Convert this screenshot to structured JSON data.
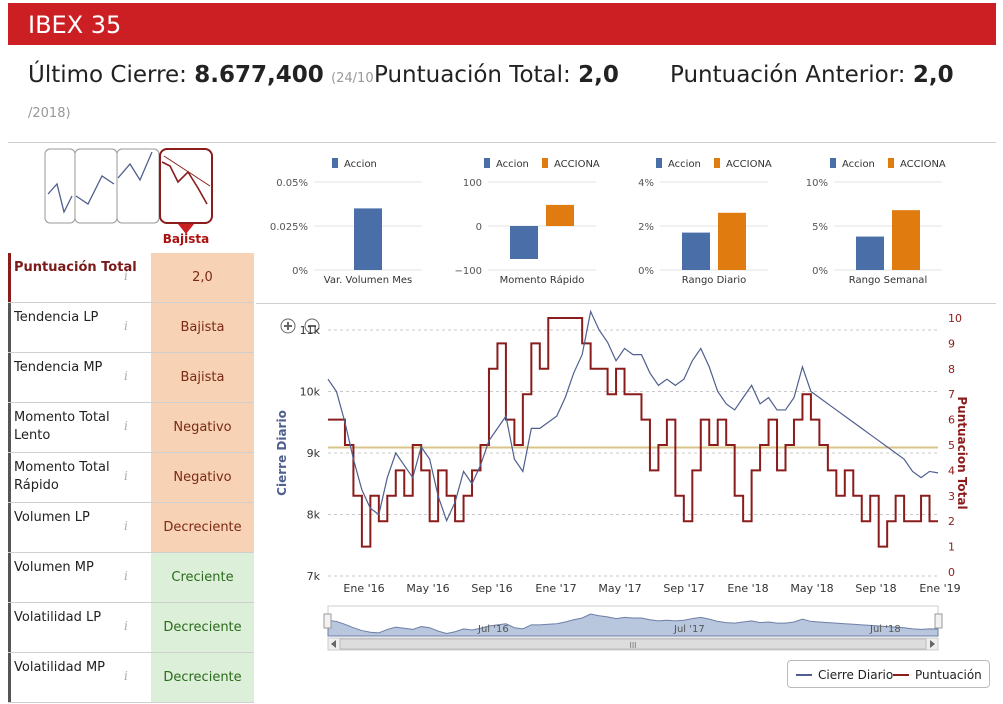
{
  "header": {
    "title": "IBEX 35"
  },
  "summary": {
    "close_label": "Último Cierre:",
    "close_value": "8.677,400",
    "close_date_a": "(24/10",
    "close_date_b": "/2018)",
    "score_label": "Puntuación Total:",
    "score_value": "2,0",
    "prev_label": "Puntuación Anterior:",
    "prev_value": "2,0"
  },
  "trend": {
    "label": "Bajista"
  },
  "indicators": [
    {
      "label": "Puntuación Total",
      "value": "2,0",
      "status": "bad"
    },
    {
      "label": "Tendencia LP",
      "value": "Bajista",
      "status": "bad"
    },
    {
      "label": "Tendencia MP",
      "value": "Bajista",
      "status": "bad"
    },
    {
      "label": "Momento Total Lento",
      "value": "Negativo",
      "status": "bad"
    },
    {
      "label": "Momento Total Rápido",
      "value": "Negativo",
      "status": "bad"
    },
    {
      "label": "Volumen LP",
      "value": "Decreciente",
      "status": "bad"
    },
    {
      "label": "Volumen MP",
      "value": "Creciente",
      "status": "good"
    },
    {
      "label": "Volatilidad LP",
      "value": "Decreciente",
      "status": "good"
    },
    {
      "label": "Volatilidad MP",
      "value": "Decreciente",
      "status": "good"
    }
  ],
  "info_icon": "i",
  "colors": {
    "accion": "#4a6fa8",
    "acciona": "#e07b10",
    "brand": "#cc1f23",
    "close_line": "#4f5f8f",
    "score_line": "#8b1c1c",
    "threshold": "#d8c48a"
  },
  "chart_data": [
    {
      "type": "bar",
      "title": "",
      "xlabel": "Var. Volumen Mes",
      "series": [
        {
          "name": "Accion",
          "values": [
            0.035
          ]
        }
      ],
      "yticks": [
        "0.05%",
        "0.025%",
        "0%"
      ],
      "ylim": [
        0,
        0.05
      ]
    },
    {
      "type": "bar",
      "title": "",
      "xlabel": "Momento Rápido",
      "series": [
        {
          "name": "Accion",
          "values": [
            -75
          ]
        },
        {
          "name": "ACCIONA",
          "values": [
            48
          ]
        }
      ],
      "yticks": [
        "100",
        "0",
        "−100"
      ],
      "ylim": [
        -100,
        100
      ]
    },
    {
      "type": "bar",
      "title": "",
      "xlabel": "Rango Diario",
      "series": [
        {
          "name": "Accion",
          "values": [
            1.7
          ]
        },
        {
          "name": "ACCIONA",
          "values": [
            2.6
          ]
        }
      ],
      "yticks": [
        "4%",
        "2%",
        "0%"
      ],
      "ylim": [
        0,
        4
      ]
    },
    {
      "type": "bar",
      "title": "",
      "xlabel": "Rango Semanal",
      "series": [
        {
          "name": "Accion",
          "values": [
            3.8
          ]
        },
        {
          "name": "ACCIONA",
          "values": [
            6.8
          ]
        }
      ],
      "yticks": [
        "10%",
        "5%",
        "0%"
      ],
      "ylim": [
        0,
        10
      ]
    },
    {
      "type": "line",
      "ylabel_left": "Cierre Diario",
      "ylabel_right": "Puntuacion Total",
      "yticks_left": [
        "11k",
        "10k",
        "9k",
        "8k",
        "7k"
      ],
      "ylim_left": [
        7000,
        11000
      ],
      "yticks_right": [
        "10",
        "9",
        "8",
        "7",
        "6",
        "5",
        "4",
        "3",
        "2",
        "1",
        "0"
      ],
      "ylim_right": [
        0,
        10
      ],
      "xticks": [
        "Ene '16",
        "May '16",
        "Sep '16",
        "Ene '17",
        "May '17",
        "Sep '17",
        "Ene '18",
        "May '18",
        "Sep '18",
        "Ene '19"
      ],
      "navigator_labels": [
        "Jul '16",
        "Jul '17",
        "Jul '18"
      ],
      "threshold": 4.9,
      "series": [
        {
          "name": "Cierre Diario",
          "x": [
            0,
            0.5,
            1,
            1.5,
            2,
            2.5,
            3,
            3.5,
            4,
            4.5,
            5,
            5.5,
            6,
            6.5,
            7,
            7.5,
            8,
            8.5,
            9,
            9.5,
            10,
            10.5,
            11,
            11.5,
            12,
            12.5,
            13,
            13.5,
            14,
            14.5,
            15,
            15.5,
            16,
            16.5,
            17,
            17.5,
            18,
            18.5,
            19,
            19.5,
            20,
            20.5,
            21,
            21.5,
            22,
            22.5,
            23,
            23.5,
            24,
            24.5,
            25,
            25.5,
            26,
            26.5,
            27,
            27.5,
            28,
            28.5,
            29,
            29.5,
            30,
            30.5,
            31,
            31.5,
            32,
            32.5,
            33,
            33.5,
            34,
            34.5,
            35,
            35.5,
            36
          ],
          "values": [
            10200,
            10000,
            9500,
            8900,
            8400,
            8100,
            8000,
            8600,
            9000,
            8800,
            8600,
            9100,
            8900,
            8300,
            7900,
            8200,
            8700,
            8500,
            8800,
            9200,
            9400,
            9600,
            8900,
            8700,
            9400,
            9400,
            9500,
            9600,
            9900,
            10300,
            10600,
            11300,
            11000,
            10800,
            10500,
            10700,
            10600,
            10600,
            10300,
            10100,
            10200,
            10100,
            10200,
            10500,
            10700,
            10400,
            10000,
            9800,
            9700,
            9900,
            10100,
            9800,
            9900,
            9700,
            9700,
            9900,
            10400,
            10000,
            9900,
            9800,
            9700,
            9600,
            9500,
            9400,
            9300,
            9200,
            9100,
            9000,
            8900,
            8700,
            8600,
            8700,
            8677
          ]
        },
        {
          "name": "Puntuación",
          "x": [
            0,
            1,
            1.5,
            2,
            2.5,
            3,
            3.5,
            4,
            4.5,
            5,
            5.5,
            6,
            6.5,
            7,
            7.5,
            8,
            8.5,
            9,
            9.5,
            10,
            10.5,
            11,
            11.5,
            12,
            12.5,
            13,
            13.5,
            14,
            14.5,
            15,
            15.5,
            16,
            16.5,
            17,
            17.5,
            18,
            18.5,
            19,
            19.5,
            20,
            20.5,
            21,
            21.5,
            22,
            22.5,
            23,
            23.5,
            24,
            24.5,
            25,
            25.5,
            26,
            26.5,
            27,
            27.5,
            28,
            28.5,
            29,
            29.5,
            30,
            30.5,
            31,
            31.5,
            32,
            32.5,
            33,
            33.5,
            34,
            34.5,
            35,
            35.5,
            36
          ],
          "values": [
            6,
            5,
            3,
            1,
            3,
            2,
            3,
            4,
            3,
            5,
            4,
            2,
            4,
            3,
            2,
            3,
            4,
            5,
            8,
            9,
            6,
            5,
            7,
            9,
            8,
            10,
            10,
            10,
            10,
            9,
            8,
            8,
            7,
            8,
            7,
            7,
            6,
            4,
            5,
            6,
            3,
            2,
            4,
            6,
            5,
            6,
            5,
            3,
            2,
            4,
            5,
            6,
            4,
            5,
            6,
            7,
            6,
            5,
            4,
            3,
            4,
            3,
            2,
            3,
            1,
            2,
            3,
            2,
            2,
            3,
            2,
            2
          ]
        }
      ]
    }
  ],
  "mini_legend": {
    "accion": "Accion",
    "acciona": "ACCIONA"
  },
  "legend": {
    "close": "Cierre Diario",
    "score": "Puntuación"
  },
  "navigator": {
    "grip": "III"
  }
}
